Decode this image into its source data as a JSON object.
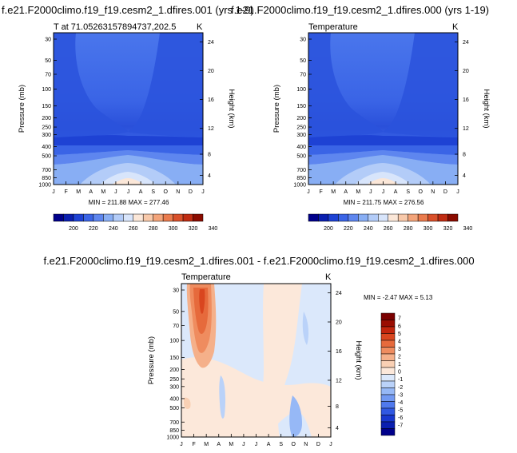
{
  "colors": {
    "abs_palette": [
      "#00008b",
      "#0a1fb0",
      "#1e42d4",
      "#3a64e6",
      "#5e86ef",
      "#88aef4",
      "#b3ccf8",
      "#d8e5fb",
      "#fbe7d8",
      "#f8c9aa",
      "#f3a47a",
      "#ea7b4d",
      "#d9502a",
      "#c02c12",
      "#8b0b00"
    ],
    "diff_palette": [
      "#00008b",
      "#0a1fb0",
      "#1838cf",
      "#3058e2",
      "#5079ed",
      "#7299f2",
      "#96b8f6",
      "#bad2f9",
      "#dbe8fb",
      "#fce8da",
      "#f9d0b4",
      "#f5b08a",
      "#ef8c5f",
      "#e66a3c",
      "#d9461f",
      "#c2250d",
      "#9a0d02",
      "#7a0000"
    ]
  },
  "panels": {
    "left": {
      "main_title": "f.e21.F2000climo.f19_f19.cesm2_1.dfires.001 (yrs 1-9)",
      "subtitle": "T at 71.05263157894737,202.5",
      "units": "K",
      "minmax": "MIN = 211.88  MAX = 277.46"
    },
    "right": {
      "main_title": "f.e21.F2000climo.f19_f19.cesm2_1.dfires.000 (yrs 1-19)",
      "subtitle": "Temperature",
      "units": "K",
      "minmax": "MIN = 211.75  MAX = 276.56"
    },
    "diff": {
      "main_title": "f.e21.F2000climo.f19_f19.cesm2_1.dfires.001 - f.e21.F2000climo.f19_f19.cesm2_1.dfires.000",
      "subtitle": "Temperature",
      "units": "K",
      "minmax": "MIN =  -2.47  MAX =   5.13"
    }
  },
  "chart_data": [
    {
      "type": "heatmap",
      "title": "f.e21.F2000climo.f19_f19.cesm2_1.dfires.001 (yrs 1-9)",
      "subtitle": "T at 71.05263157894737,202.5",
      "x": [
        "J",
        "F",
        "M",
        "A",
        "M",
        "J",
        "J",
        "A",
        "S",
        "O",
        "N",
        "D",
        "J"
      ],
      "y_pressure": [
        30,
        50,
        70,
        100,
        150,
        200,
        250,
        300,
        400,
        500,
        700,
        850,
        1000
      ],
      "y_height_km": [
        24,
        20,
        16,
        12,
        8,
        4
      ],
      "ylabel": "Pressure (mb)",
      "ylabel_right": "Height (km)",
      "units": "K",
      "min": 211.88,
      "max": 277.46,
      "colorbar_labels": [
        "200",
        "220",
        "240",
        "260",
        "280",
        "300",
        "320",
        "340"
      ]
    },
    {
      "type": "heatmap",
      "title": "f.e21.F2000climo.f19_f19.cesm2_1.dfires.000 (yrs 1-19)",
      "subtitle": "Temperature",
      "x": [
        "J",
        "F",
        "M",
        "A",
        "M",
        "J",
        "J",
        "A",
        "S",
        "O",
        "N",
        "D",
        "J"
      ],
      "y_pressure": [
        30,
        50,
        70,
        100,
        150,
        200,
        250,
        300,
        400,
        500,
        700,
        850,
        1000
      ],
      "y_height_km": [
        24,
        20,
        16,
        12,
        8,
        4
      ],
      "ylabel": "Pressure (mb)",
      "ylabel_right": "Height (km)",
      "units": "K",
      "min": 211.75,
      "max": 276.56,
      "colorbar_labels": [
        "200",
        "220",
        "240",
        "260",
        "280",
        "300",
        "320",
        "340"
      ]
    },
    {
      "type": "heatmap",
      "title": "f.e21.F2000climo.f19_f19.cesm2_1.dfires.001 - f.e21.F2000climo.f19_f19.cesm2_1.dfires.000",
      "subtitle": "Temperature",
      "x": [
        "J",
        "F",
        "M",
        "A",
        "M",
        "J",
        "J",
        "A",
        "S",
        "O",
        "N",
        "D",
        "J"
      ],
      "y_pressure": [
        30,
        50,
        70,
        100,
        150,
        200,
        250,
        300,
        400,
        500,
        700,
        850,
        1000
      ],
      "y_height_km": [
        24,
        20,
        16,
        12,
        8,
        4
      ],
      "ylabel": "Pressure (mb)",
      "ylabel_right": "Height (km)",
      "units": "K",
      "min": -2.47,
      "max": 5.13,
      "colorbar_labels": [
        "7",
        "6",
        "5",
        "4",
        "3",
        "2",
        "1",
        "0",
        "-1",
        "-2",
        "-3",
        "-4",
        "-5",
        "-6",
        "-7"
      ]
    }
  ]
}
